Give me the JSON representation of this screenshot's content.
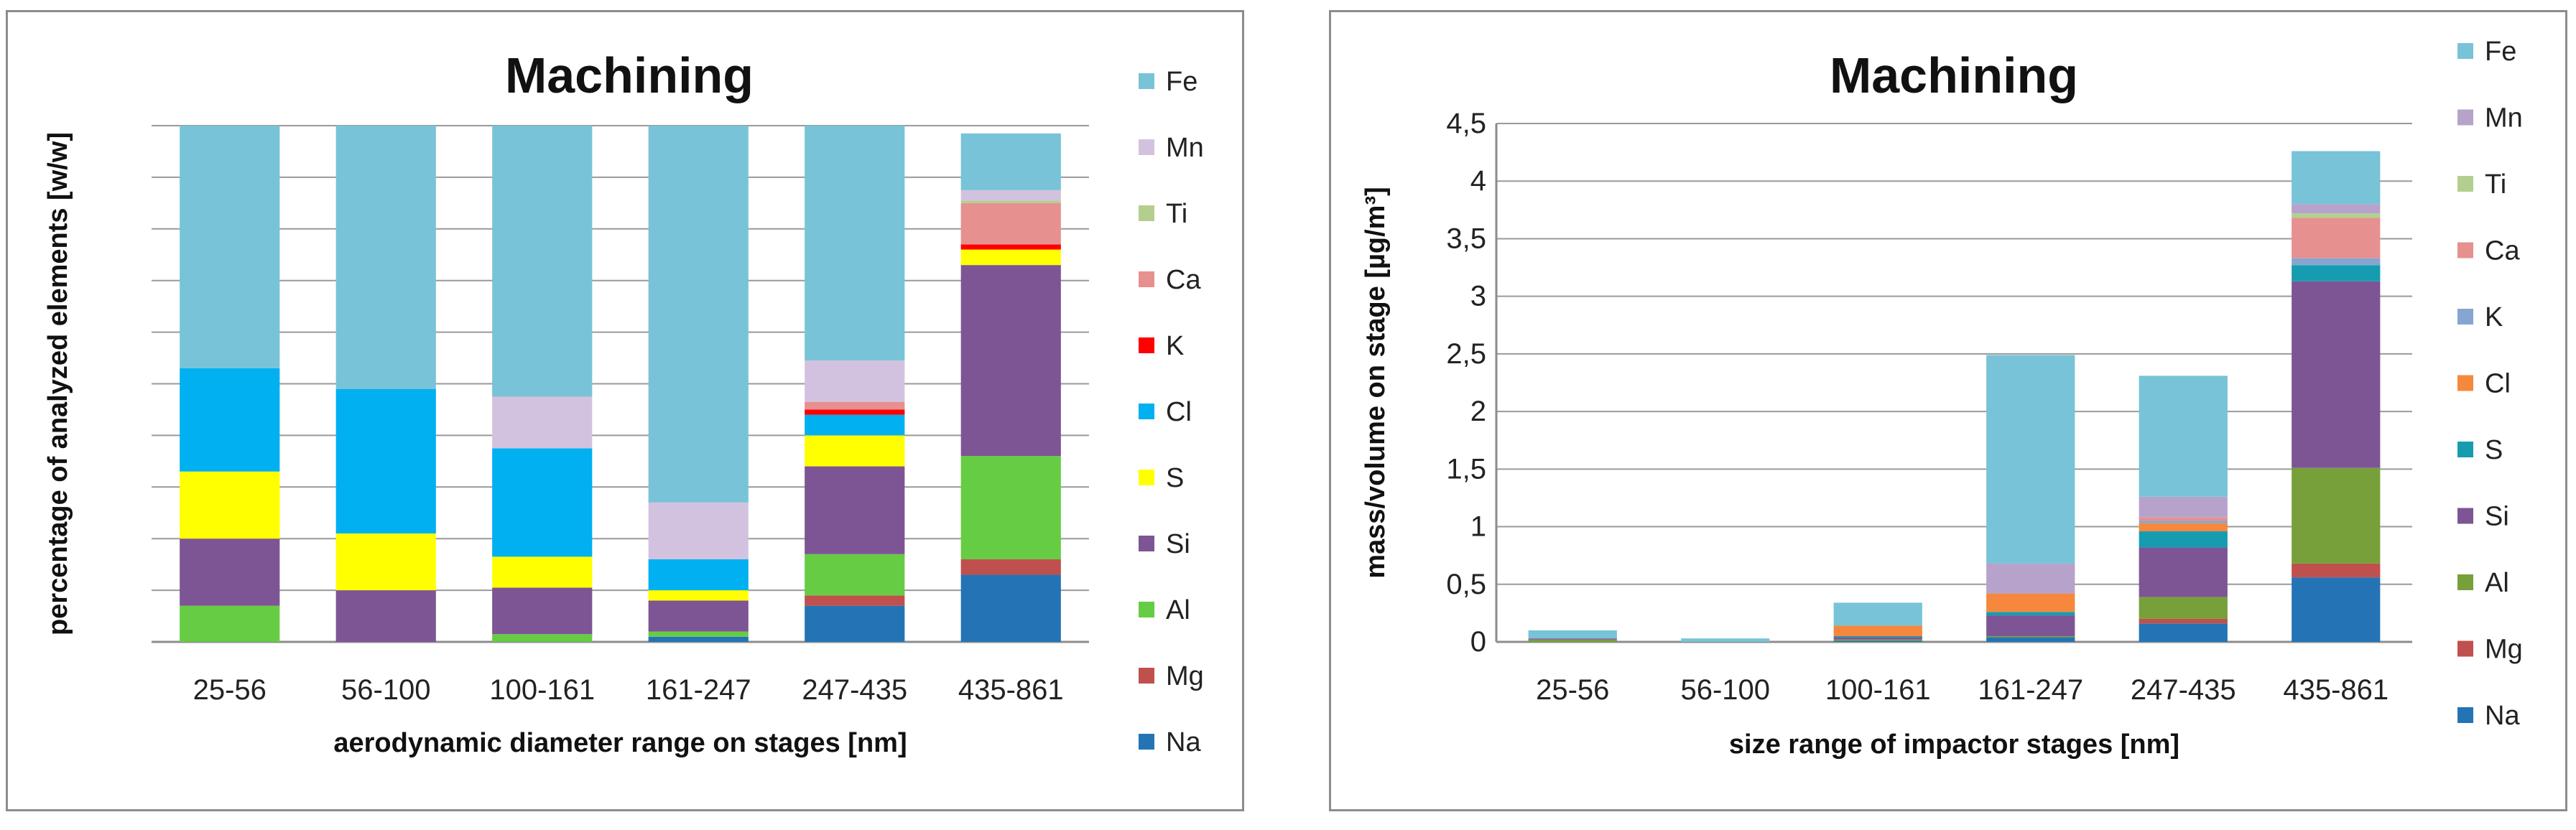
{
  "palette": {
    "left": {
      "Na": "#2474b5",
      "Mg": "#c0504d",
      "Al": "#66cc44",
      "Si": "#7d5594",
      "S": "#ffff00",
      "Cl": "#00b0f0",
      "K": "#ff0000",
      "Ca": "#e6908f",
      "Ti": "#b3cf8f",
      "Mn": "#d3c2df",
      "Fe": "#78c3d7"
    },
    "right": {
      "Na": "#2474b5",
      "Mg": "#c0504d",
      "Al": "#77a03a",
      "Si": "#7d5594",
      "S": "#169cb0",
      "Cl": "#f5883c",
      "K": "#84a6d0",
      "Ca": "#e6908f",
      "Ti": "#b3cf8f",
      "Mn": "#b7a2cc",
      "Fe": "#78c3d7"
    }
  },
  "chart_data": [
    {
      "type": "bar",
      "stacked": "percent",
      "title": "Machining",
      "xlabel": "aerodynamic diameter range on stages [nm]",
      "ylabel": "percentage of analyzed elements [w/w]",
      "ylim": [
        0,
        100
      ],
      "y_ticks_labeled": false,
      "grid": true,
      "legend_position": "right",
      "categories": [
        "25-56",
        "56-100",
        "100-161",
        "161-247",
        "247-435",
        "435-861"
      ],
      "series": [
        {
          "name": "Na",
          "values": [
            0,
            0,
            0,
            1,
            7,
            13
          ]
        },
        {
          "name": "Mg",
          "values": [
            0,
            0,
            0,
            0,
            2,
            3
          ]
        },
        {
          "name": "Al",
          "values": [
            7,
            0,
            1.5,
            1,
            8,
            20
          ]
        },
        {
          "name": "Si",
          "values": [
            13,
            10,
            9,
            6,
            17,
            37
          ]
        },
        {
          "name": "S",
          "values": [
            13,
            11,
            6,
            2,
            6,
            3
          ]
        },
        {
          "name": "Cl",
          "values": [
            20,
            28,
            21,
            6,
            4,
            0
          ]
        },
        {
          "name": "K",
          "values": [
            0,
            0,
            0,
            0,
            1,
            1
          ]
        },
        {
          "name": "Ca",
          "values": [
            0,
            0,
            0,
            0,
            1.5,
            8
          ]
        },
        {
          "name": "Ti",
          "values": [
            0,
            0,
            0,
            0,
            0,
            0.5
          ]
        },
        {
          "name": "Mn",
          "values": [
            0,
            0,
            10,
            11,
            8,
            2
          ]
        },
        {
          "name": "Fe",
          "values": [
            47,
            51,
            52.5,
            73,
            45.5,
            11
          ]
        }
      ]
    },
    {
      "type": "bar",
      "stacked": "absolute",
      "title": "Machining",
      "xlabel": "size range of impactor stages [nm]",
      "ylabel": "mass/volume on stage [µg/m³]",
      "ylim": [
        0,
        4.5
      ],
      "y_ticks": [
        "0",
        "0,5",
        "1",
        "1,5",
        "2",
        "2,5",
        "3",
        "3,5",
        "4",
        "4,5"
      ],
      "grid": true,
      "legend_position": "right",
      "categories": [
        "25-56",
        "56-100",
        "100-161",
        "161-247",
        "247-435",
        "435-861"
      ],
      "series": [
        {
          "name": "Na",
          "values": [
            0,
            0,
            0.01,
            0.04,
            0.16,
            0.56
          ]
        },
        {
          "name": "Mg",
          "values": [
            0,
            0,
            0,
            0,
            0.04,
            0.12
          ]
        },
        {
          "name": "Al",
          "values": [
            0.02,
            0,
            0.01,
            0.01,
            0.19,
            0.83
          ]
        },
        {
          "name": "Si",
          "values": [
            0.01,
            0,
            0.02,
            0.18,
            0.43,
            1.62
          ]
        },
        {
          "name": "S",
          "values": [
            0,
            0,
            0.01,
            0.03,
            0.14,
            0.14
          ]
        },
        {
          "name": "Cl",
          "values": [
            0,
            0,
            0.09,
            0.16,
            0.07,
            0
          ]
        },
        {
          "name": "K",
          "values": [
            0,
            0,
            0,
            0,
            0.02,
            0.06
          ]
        },
        {
          "name": "Ca",
          "values": [
            0,
            0,
            0,
            0,
            0.03,
            0.35
          ]
        },
        {
          "name": "Ti",
          "values": [
            0,
            0,
            0,
            0,
            0,
            0.04
          ]
        },
        {
          "name": "Mn",
          "values": [
            0,
            0,
            0,
            0.26,
            0.18,
            0.08
          ]
        },
        {
          "name": "Fe",
          "values": [
            0.07,
            0.03,
            0.2,
            1.81,
            1.05,
            0.46
          ]
        }
      ]
    }
  ]
}
